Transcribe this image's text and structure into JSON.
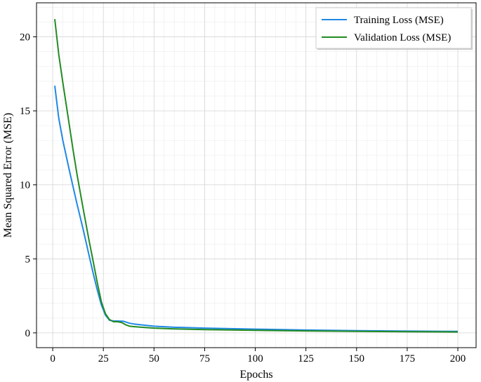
{
  "chart_data": {
    "type": "line",
    "xlabel": "Epochs",
    "ylabel": "Mean Squared Error (MSE)",
    "xlim": [
      -8,
      209
    ],
    "ylim": [
      -1,
      22.3
    ],
    "xticks": [
      0,
      25,
      50,
      75,
      100,
      125,
      150,
      175,
      200
    ],
    "yticks": [
      0,
      5,
      10,
      15,
      20
    ],
    "grid": true,
    "minor_grid": true,
    "legend_position": "top-right",
    "series": [
      {
        "name": "Training Loss (MSE)",
        "color": "#1f88e5",
        "x": [
          1,
          3,
          5,
          8,
          10,
          12,
          15,
          18,
          20,
          22,
          24,
          26,
          28,
          30,
          32,
          35,
          38,
          40,
          45,
          50,
          60,
          75,
          100,
          125,
          150,
          175,
          200
        ],
        "y": [
          16.7,
          14.5,
          13.0,
          11.1,
          9.9,
          8.7,
          7.0,
          5.2,
          4.0,
          2.9,
          1.9,
          1.2,
          0.85,
          0.8,
          0.8,
          0.78,
          0.65,
          0.6,
          0.52,
          0.45,
          0.38,
          0.32,
          0.25,
          0.19,
          0.15,
          0.12,
          0.1
        ]
      },
      {
        "name": "Validation Loss (MSE)",
        "color": "#228b22",
        "x": [
          1,
          3,
          5,
          8,
          10,
          12,
          15,
          18,
          20,
          22,
          24,
          26,
          28,
          30,
          32,
          34,
          36,
          38,
          40,
          45,
          50,
          60,
          75,
          100,
          125,
          150,
          175,
          200
        ],
        "y": [
          21.2,
          18.8,
          16.9,
          14.2,
          12.4,
          10.7,
          8.4,
          6.2,
          4.8,
          3.4,
          2.1,
          1.3,
          0.9,
          0.75,
          0.75,
          0.7,
          0.55,
          0.45,
          0.42,
          0.37,
          0.32,
          0.27,
          0.22,
          0.17,
          0.13,
          0.1,
          0.08,
          0.06
        ]
      }
    ]
  }
}
